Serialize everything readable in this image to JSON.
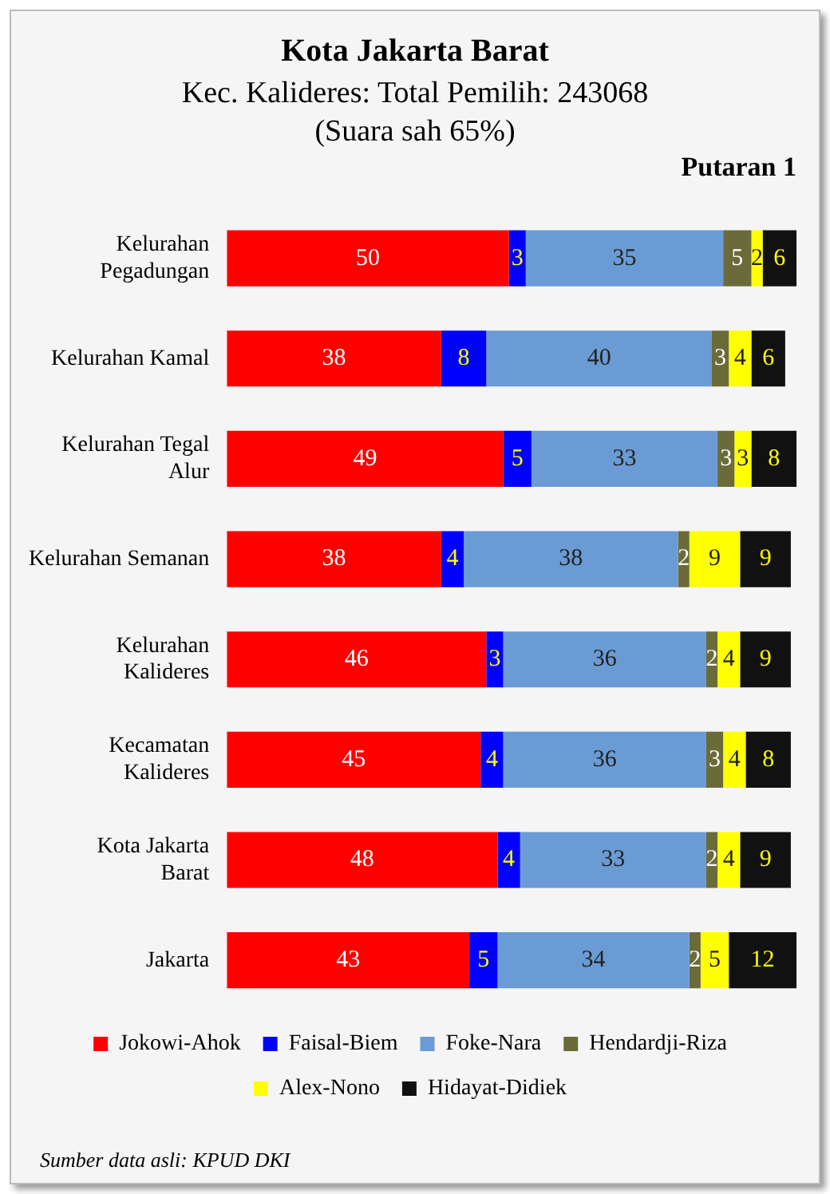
{
  "chart_data": {
    "type": "bar",
    "orientation": "horizontal",
    "stacked": true,
    "title": "Kota Jakarta Barat",
    "subtitle": "Kec. Kalideres: Total Pemilih: 243068 (Suara sah 65%)",
    "annotations": [
      "Putaran 1",
      "Sumber data asli: KPUD DKI"
    ],
    "categories": [
      "Kelurahan Pegadungan",
      "Kelurahan Kamal",
      "Kelurahan Tegal Alur",
      "Kelurahan Semanan",
      "Kelurahan Kalideres",
      "Kecamatan Kalideres",
      "Kota Jakarta Barat",
      "Jakarta"
    ],
    "series": [
      {
        "name": "Jokowi-Ahok",
        "color": "#ff0000",
        "values": [
          50,
          38,
          49,
          38,
          46,
          45,
          48,
          43
        ]
      },
      {
        "name": "Faisal-Biem",
        "color": "#0000ff",
        "values": [
          3,
          8,
          5,
          4,
          3,
          4,
          4,
          5
        ]
      },
      {
        "name": "Foke-Nara",
        "color": "#6a9bd4",
        "values": [
          35,
          40,
          33,
          38,
          36,
          36,
          33,
          34
        ]
      },
      {
        "name": "Hendardji-Riza",
        "color": "#6b6b3a",
        "values": [
          5,
          3,
          3,
          2,
          2,
          3,
          2,
          2
        ]
      },
      {
        "name": "Alex-Nono",
        "color": "#ffff00",
        "values": [
          2,
          4,
          3,
          9,
          4,
          4,
          4,
          5
        ]
      },
      {
        "name": "Hidayat-Didiek",
        "color": "#111111",
        "values": [
          6,
          6,
          8,
          9,
          9,
          8,
          9,
          12
        ]
      }
    ],
    "data_labels": true,
    "legend": "bottom",
    "grid": false,
    "tick_labels": "y"
  }
}
